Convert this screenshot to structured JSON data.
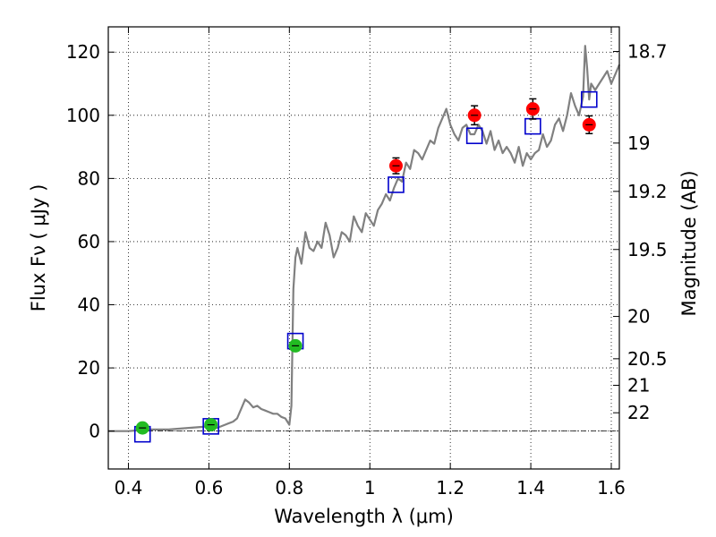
{
  "chart_data": {
    "type": "scatter",
    "title": "",
    "xlabel": "Wavelength  λ (μm)",
    "ylabel": "Flux  Fν  ( μJy )",
    "y2label": "Magnitude (AB)",
    "xlim": [
      0.35,
      1.62
    ],
    "ylim": [
      -12,
      128
    ],
    "grid": true,
    "x_ticks": [
      0.4,
      0.6,
      0.8,
      1.0,
      1.2,
      1.4,
      1.6
    ],
    "x_tick_labels": [
      "0.4",
      "0.6",
      "0.8",
      "1",
      "1.2",
      "1.4",
      "1.6"
    ],
    "y_ticks": [
      0,
      20,
      40,
      60,
      80,
      100,
      120
    ],
    "y_tick_labels": [
      "0",
      "20",
      "40",
      "60",
      "80",
      "100",
      "120"
    ],
    "y2_ticks": [
      {
        "label": "18.7",
        "flux": 120.2
      },
      {
        "label": "19",
        "flux": 91.2
      },
      {
        "label": "19.2",
        "flux": 75.9
      },
      {
        "label": "19.5",
        "flux": 57.5
      },
      {
        "label": "20",
        "flux": 36.3
      },
      {
        "label": "20.5",
        "flux": 22.9
      },
      {
        "label": "21",
        "flux": 14.5
      },
      {
        "label": "22",
        "flux": 5.8
      }
    ],
    "colors": {
      "spectrum": "#808080",
      "green_points": "#22bb22",
      "red_points": "#ff0000",
      "model_squares": "#0000cc",
      "error_bars": "#000000",
      "zero_line": "#000000"
    },
    "series": [
      {
        "kind": "line",
        "x": [
          0.35,
          0.4,
          0.45,
          0.5,
          0.55,
          0.6,
          0.62,
          0.64,
          0.66,
          0.67,
          0.68,
          0.69,
          0.7,
          0.71,
          0.72,
          0.73,
          0.74,
          0.75,
          0.76,
          0.77,
          0.78,
          0.79,
          0.8,
          0.805,
          0.81,
          0.815,
          0.82,
          0.83,
          0.84,
          0.85,
          0.86,
          0.87,
          0.88,
          0.89,
          0.9,
          0.91,
          0.92,
          0.93,
          0.94,
          0.95,
          0.96,
          0.97,
          0.98,
          0.99,
          1.0,
          1.01,
          1.02,
          1.03,
          1.04,
          1.05,
          1.06,
          1.07,
          1.08,
          1.09,
          1.1,
          1.11,
          1.12,
          1.13,
          1.14,
          1.15,
          1.16,
          1.17,
          1.18,
          1.19,
          1.2,
          1.21,
          1.22,
          1.23,
          1.24,
          1.25,
          1.26,
          1.27,
          1.28,
          1.29,
          1.3,
          1.31,
          1.32,
          1.33,
          1.34,
          1.35,
          1.36,
          1.37,
          1.38,
          1.39,
          1.4,
          1.41,
          1.42,
          1.43,
          1.44,
          1.45,
          1.46,
          1.47,
          1.48,
          1.49,
          1.5,
          1.51,
          1.52,
          1.53,
          1.535,
          1.54,
          1.545,
          1.55,
          1.56,
          1.57,
          1.58,
          1.59,
          1.6,
          1.61,
          1.62
        ],
        "y": [
          0,
          0,
          0.5,
          0.5,
          1,
          1.5,
          1,
          2,
          3,
          4,
          7,
          10,
          9,
          7.5,
          8,
          7,
          6.5,
          6,
          5.5,
          5.5,
          4.5,
          4,
          2,
          8,
          45,
          55,
          58,
          53,
          63,
          58,
          57,
          60,
          58,
          66,
          62,
          55,
          58,
          63,
          62,
          60,
          68,
          65,
          63,
          69,
          67,
          65,
          70,
          72,
          75,
          73,
          77,
          80,
          79,
          85,
          83,
          89,
          88,
          86,
          89,
          92,
          91,
          96,
          99,
          102,
          97,
          94,
          92,
          96,
          97,
          94,
          94,
          97,
          95,
          91,
          95,
          89,
          92,
          88,
          90,
          88,
          85,
          90,
          84,
          88,
          86,
          88,
          89,
          94,
          90,
          92,
          97,
          99,
          95,
          100,
          107,
          103,
          100,
          106,
          122,
          115,
          105,
          110,
          108,
          110,
          112,
          114,
          110,
          113,
          116
        ]
      },
      {
        "kind": "model_squares",
        "x": [
          0.435,
          0.605,
          0.815,
          1.065,
          1.26,
          1.405,
          1.545
        ],
        "y": [
          -1,
          1.5,
          28.5,
          78,
          93.5,
          96.5,
          105
        ]
      },
      {
        "kind": "green_points",
        "x": [
          0.435,
          0.605,
          0.815
        ],
        "y": [
          1,
          2,
          27
        ],
        "err": [
          0.5,
          0.5,
          1.5
        ]
      },
      {
        "kind": "red_points",
        "x": [
          1.065,
          1.26,
          1.405,
          1.545
        ],
        "y": [
          84,
          100,
          102,
          97
        ],
        "err": [
          2.5,
          3,
          3.2,
          2.8
        ]
      }
    ]
  }
}
